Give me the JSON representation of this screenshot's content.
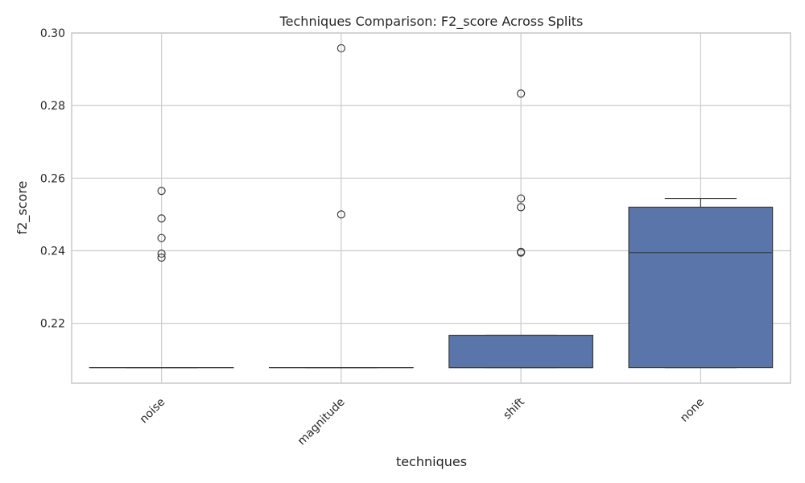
{
  "chart_data": {
    "type": "box",
    "title": "Techniques Comparison: F2_score Across Splits",
    "xlabel": "techniques",
    "ylabel": "f2_score",
    "ylim": [
      0.2035,
      0.3
    ],
    "yticks": [
      0.22,
      0.24,
      0.26,
      0.28,
      0.3
    ],
    "ytick_labels": [
      "0.22",
      "0.24",
      "0.26",
      "0.28",
      "0.30"
    ],
    "categories": [
      "noise",
      "magnitude",
      "shift",
      "none"
    ],
    "grid": true,
    "box_color": "#5975a9",
    "boxes": [
      {
        "category": "noise",
        "whisker_low": 0.2078,
        "q1": 0.2078,
        "median": 0.2078,
        "q3": 0.2078,
        "whisker_high": 0.2078,
        "outliers": [
          0.2565,
          0.2489,
          0.2435,
          0.2392,
          0.2381
        ]
      },
      {
        "category": "magnitude",
        "whisker_low": 0.2078,
        "q1": 0.2078,
        "median": 0.2078,
        "q3": 0.2078,
        "whisker_high": 0.2078,
        "outliers": [
          0.2958,
          0.25
        ]
      },
      {
        "category": "shift",
        "whisker_low": 0.2078,
        "q1": 0.2078,
        "median": 0.2078,
        "q3": 0.2167,
        "whisker_high": 0.2167,
        "outliers": [
          0.2833,
          0.2544,
          0.252,
          0.2397,
          0.2395
        ]
      },
      {
        "category": "none",
        "whisker_low": 0.2078,
        "q1": 0.2078,
        "median": 0.2395,
        "q3": 0.252,
        "whisker_high": 0.2544,
        "outliers": []
      }
    ]
  }
}
